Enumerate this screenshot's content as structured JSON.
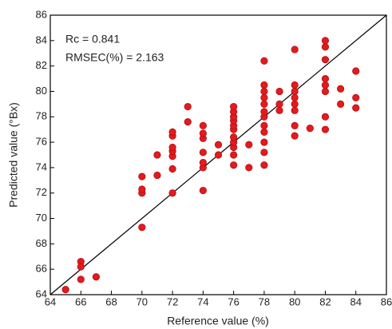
{
  "chart_data": {
    "type": "scatter",
    "xlabel": "Reference value (%)",
    "ylabel": "Predicted value (°Bx)",
    "annotations": [
      "Rc = 0.841",
      "RMSEC(%) = 2.163"
    ],
    "xlim": [
      64,
      86
    ],
    "ylim": [
      64,
      86
    ],
    "xticks": [
      64,
      66,
      68,
      70,
      72,
      74,
      76,
      78,
      80,
      82,
      84,
      86
    ],
    "yticks": [
      64,
      66,
      68,
      70,
      72,
      74,
      76,
      78,
      80,
      82,
      84,
      86
    ],
    "series": [
      {
        "color": "#e41a1c",
        "x": [
          65,
          66,
          66,
          66,
          67,
          70,
          70,
          70,
          70,
          71,
          71,
          72,
          72,
          72,
          72,
          72,
          72,
          72,
          73,
          73,
          74,
          74,
          74,
          74,
          74,
          74,
          74,
          75,
          75,
          76,
          76,
          76,
          76,
          76,
          76,
          76,
          76,
          76,
          76,
          76,
          77,
          77,
          78,
          78,
          78,
          78,
          78,
          78,
          78,
          78,
          78,
          78,
          78,
          78,
          79,
          79,
          79,
          80,
          80,
          80,
          80,
          80,
          80,
          80,
          80,
          81,
          82,
          82,
          82,
          82,
          82,
          82,
          82,
          82,
          83,
          83,
          84,
          84,
          84
        ],
        "y": [
          64.4,
          66.6,
          66.2,
          65.2,
          65.4,
          69.3,
          72,
          72.3,
          73.3,
          73.4,
          75,
          72,
          73.9,
          74.9,
          75.3,
          75.6,
          76.5,
          76.8,
          77.6,
          78.8,
          72.2,
          74,
          74.4,
          75.2,
          76.3,
          76.7,
          77.3,
          75,
          75.8,
          74.2,
          75,
          75.6,
          76,
          76.4,
          77,
          77.3,
          77.7,
          78,
          78.4,
          78.8,
          74,
          75.8,
          74.2,
          75.2,
          76,
          76.8,
          77.3,
          78,
          78.4,
          79,
          79.5,
          80,
          80.5,
          82.4,
          78.5,
          79,
          80,
          76.5,
          77.3,
          78.5,
          79,
          79.5,
          80,
          80.5,
          83.3,
          77.1,
          77,
          78,
          80,
          80.5,
          81,
          82.5,
          83.5,
          84,
          79,
          80.2,
          78.7,
          79.5,
          81.6
        ]
      }
    ]
  }
}
